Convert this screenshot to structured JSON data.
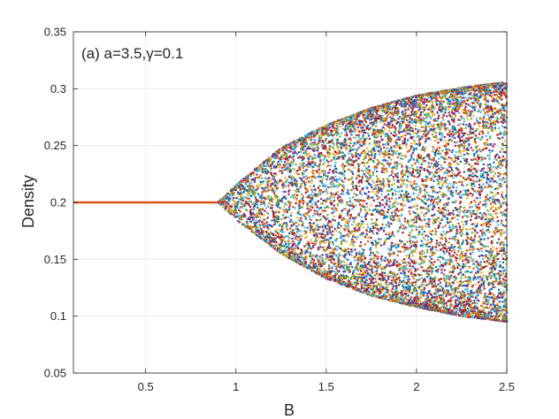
{
  "chart_data": {
    "type": "scatter",
    "annotation": "(a) a=3.5,γ=0.1",
    "xlabel": "B",
    "ylabel": "Density",
    "xlim": [
      0.1,
      2.5
    ],
    "ylim": [
      0.05,
      0.35
    ],
    "xticks": [
      0.5,
      1,
      1.5,
      2,
      2.5
    ],
    "xtick_labels": [
      "0.5",
      "1",
      "1.5",
      "2",
      "2.5"
    ],
    "yticks": [
      0.05,
      0.1,
      0.15,
      0.2,
      0.25,
      0.3,
      0.35
    ],
    "ytick_labels": [
      "0.05",
      "0.1",
      "0.15",
      "0.2",
      "0.25",
      "0.3",
      "0.35"
    ],
    "grid": true,
    "box": true,
    "legend": "none",
    "description": "bifurcation diagram",
    "bifurcation": {
      "fixed_point": 0.2,
      "onset_B": 0.9,
      "upper_envelope": [
        [
          0.9,
          0.2
        ],
        [
          1.0,
          0.215
        ],
        [
          1.25,
          0.248
        ],
        [
          1.5,
          0.268
        ],
        [
          1.75,
          0.283
        ],
        [
          2.0,
          0.294
        ],
        [
          2.25,
          0.301
        ],
        [
          2.5,
          0.306
        ]
      ],
      "lower_envelope": [
        [
          0.9,
          0.2
        ],
        [
          1.0,
          0.185
        ],
        [
          1.25,
          0.155
        ],
        [
          1.5,
          0.133
        ],
        [
          1.75,
          0.118
        ],
        [
          2.0,
          0.108
        ],
        [
          2.25,
          0.1
        ],
        [
          2.5,
          0.095
        ]
      ]
    },
    "series_colors": [
      "#0072BD",
      "#D95319",
      "#EDB120",
      "#7E2F8E",
      "#77AC30",
      "#4DBEEE",
      "#A2142F"
    ]
  }
}
